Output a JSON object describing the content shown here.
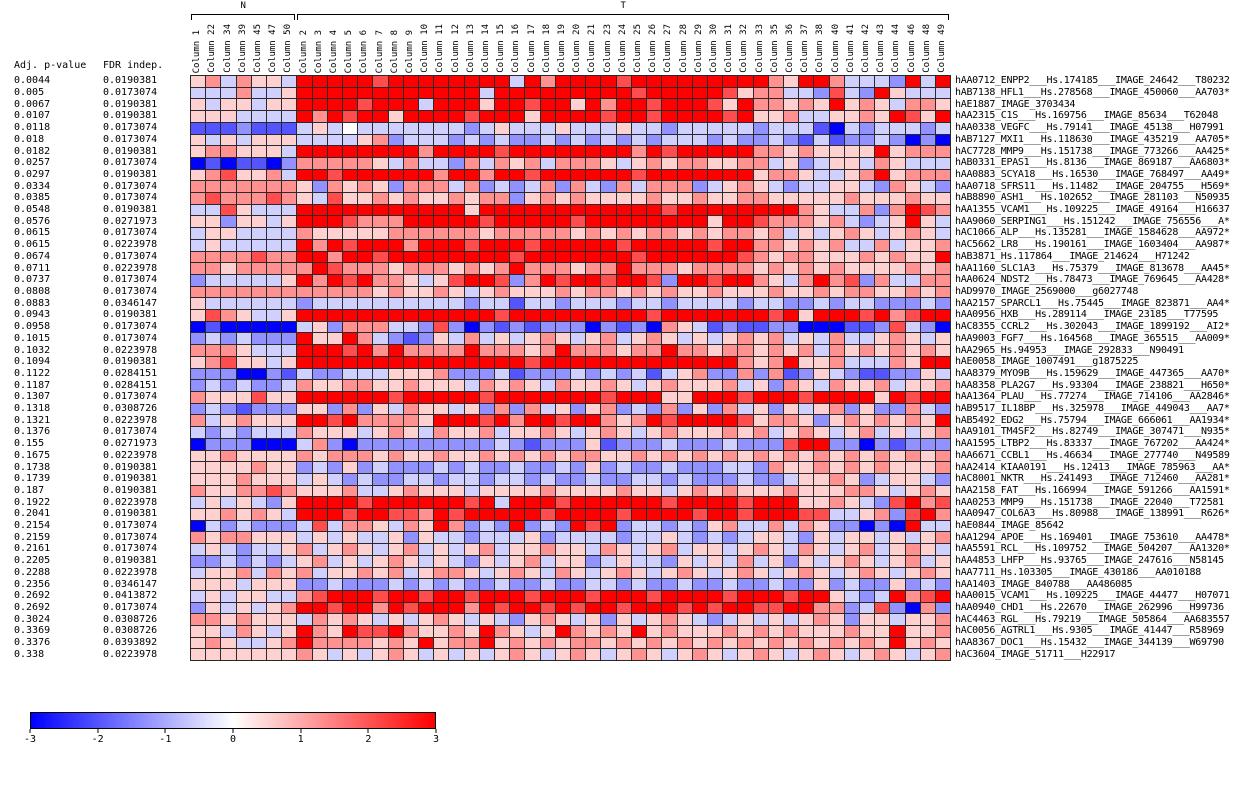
{
  "chart_data": {
    "type": "heatmap",
    "title": "",
    "stat_headers": {
      "adj_p": "Adj. p-value",
      "fdr": "FDR indep."
    },
    "value_range": [
      -3,
      3
    ],
    "colorbar_ticks": [
      "-3",
      "-2",
      "-1",
      "0",
      "1",
      "2",
      "3"
    ],
    "colormap": {
      "negative": "#0000ff",
      "zero": "#ffffff",
      "positive": "#ff0000"
    },
    "grid_line_color": "#2a2a2a",
    "bucket_values": {
      "0": -3,
      "1": -2,
      "2": -1.3,
      "3": -0.55,
      "4": 0,
      "5": 0.55,
      "6": 1.3,
      "7": 2.1,
      "8": 3
    },
    "column_groups": [
      {
        "label": "N",
        "n_columns": 7
      },
      {
        "label": "T",
        "n_columns": 43
      }
    ],
    "columns": [
      "Column 1",
      "Column 22",
      "Column 34",
      "Column 39",
      "Column 45",
      "Column 47",
      "Column 50",
      "Column 2",
      "Column 3",
      "Column 4",
      "Column 5",
      "Column 6",
      "Column 7",
      "Column 8",
      "Column 9",
      "Column 10",
      "Column 11",
      "Column 12",
      "Column 13",
      "Column 14",
      "Column 15",
      "Column 16",
      "Column 17",
      "Column 18",
      "Column 19",
      "Column 20",
      "Column 21",
      "Column 23",
      "Column 24",
      "Column 25",
      "Column 26",
      "Column 27",
      "Column 28",
      "Column 29",
      "Column 30",
      "Column 31",
      "Column 32",
      "Column 33",
      "Column 35",
      "Column 36",
      "Column 37",
      "Column 38",
      "Column 40",
      "Column 41",
      "Column 42",
      "Column 43",
      "Column 44",
      "Column 46",
      "Column 48",
      "Column 49"
    ],
    "rows": [
      {
        "adj_p": "0.0044",
        "fdr": "0.0190381",
        "label": "hAA0712_ENPP2___Hs.174185___IMAGE_24642___T80232",
        "cells": "5636553888887888888883868888788888 8888658863332838"
      },
      {
        "adj_p": "0.005",
        "fdr": "0.0173074",
        "label": "hAB7138_HFL1___Hs.278568___IMAGE_450060___AA703*",
        "cells": "33363358888888888883888888888788888756633273285333"
      },
      {
        "adj_p": "0.0067",
        "fdr": "0.0190381",
        "label": "hAE1887_IMAGE_3703434",
        "cells": "53553558888788838885887885868878887586656585653665"
      },
      {
        "adj_p": "0.0107",
        "fdr": "0.0190381",
        "label": "hAA2315_C1S___Hs.169756___IMAGE_85634___T62048",
        "cells": "55533338687885888878885888878878888785563355658758"
      },
      {
        "adj_p": "0.0118",
        "fdr": "0.0173074",
        "label": "hAA0338_VEGFC___Hs.79141___IMAGE_45138___H07991",
        "cells": "11121113534333333323533353335332333332333103233323"
      },
      {
        "adj_p": "0.018",
        "fdr": "0.0173074",
        "label": "hAB7127_MXI1___Hs.118630___IMAGE_435219___AA705*",
        "cells": "53535553333562333232322323232323332322321312232020"
      },
      {
        "adj_p": "0.0182",
        "fdr": "0.0190381",
        "label": "hAC7728_MMP9___Hs.151738___IMAGE_773266___AA425*",
        "cells": "56655538888888868888788888888687888886656555585666"
      },
      {
        "adj_p": "0.0257",
        "fdr": "0.0173074",
        "label": "hAB0331_EPAS1___Hs.8136___IMAGE_869187___AA6803*",
        "cells": "01011026666653633263656366653565665566352355365333"
      },
      {
        "adj_p": "0.0297",
        "fdr": "0.0190381",
        "label": "hAA0883_SCYA18___Hs.16530___IMAGE_768497___AA49*",
        "cells": "56755638878888886886887888888788888885665335685666"
      },
      {
        "adj_p": "0.0334",
        "fdr": "0.0173074",
        "label": "hAA0718_SFRS11___Hs.11482___IMAGE_204755___H569*",
        "cells": "66666665265652666362323626326366623565323355326532"
      },
      {
        "adj_p": "0.0385",
        "fdr": "0.0173074",
        "label": "hAB8890_ASH1___Hs.102652___IMAGE_281103___N50935",
        "cells": "67666765375565655656625656555565565566555556555655"
      },
      {
        "adj_p": "0.0548",
        "fdr": "0.0190381",
        "label": "hAA1355_VCAM1___Hs.109225___IMAGE_49164___H16637",
        "cells": "33753338888888888858888888888887888888886533626876"
      },
      {
        "adj_p": "0.0576",
        "fdr": "0.0271973",
        "label": "hAA9060_SERPING1___Hs.151242___IMAGE_756556___A*",
        "cells": "55255358887666888887888887888888885887666563235853"
      },
      {
        "adj_p": "0.0615",
        "fdr": "0.0173074",
        "label": "hAC1066_ALP___Hs.135281___IMAGE_1584628___AA972*",
        "cells": "35533336555556666665666665656566565665635356535653"
      },
      {
        "adj_p": "0.0615",
        "fdr": "0.0223978",
        "label": "hAC5662_LR8___Hs.190161___IMAGE_1603404___AA987*",
        "cells": "35333338687888688878887888887888887886656563363556"
      },
      {
        "adj_p": "0.0674",
        "fdr": "0.0173074",
        "label": "hAB3871_Hs.117864___IMAGE_214624___H71242",
        "cells": "66667668868878888888878888888788888876566555656558"
      },
      {
        "adj_p": "0.0711",
        "fdr": "0.0223978",
        "label": "hAA1160_SLC1A3___Hs.75379___IMAGE_813678___AA45*",
        "cells": "66566666876665666565686665668666566665656565555656"
      },
      {
        "adj_p": "0.0737",
        "fdr": "0.0173074",
        "label": "hAA0624_NDST2___Hs.78473___IMAGE_769645___AA428*",
        "cells": "23333358687866535788726878878872887886536867263366"
      },
      {
        "adj_p": "0.0808",
        "fdr": "0.0173074",
        "label": "hAD9970_IMAGE_2569000___g6027748",
        "cells": "66666666666656556535655565665656556555655656655656"
      },
      {
        "adj_p": "0.0883",
        "fdr": "0.0346147",
        "label": "hAA2157_SPARCL1___Hs.75445___IMAGE_823871___AA4*",
        "cells": "53333332333333333323313323332332333323322323322232"
      },
      {
        "adj_p": "0.0943",
        "fdr": "0.0190381",
        "label": "hAA0956_HXB___Hs.289114___IMAGE_23185___T77595",
        "cells": "57653358888888888888788888888878888888785888786788"
      },
      {
        "adj_p": "0.0958",
        "fdr": "0.0173074",
        "label": "hAC8355_CCRL2___Hs.302043___IMAGE_1899192___AI2*",
        "cells": "01000003526663327202121222021206531211220001127320"
      },
      {
        "adj_p": "0.1015",
        "fdr": "0.0173074",
        "label": "hAA9003_FGF7___Hs.164568___IMAGE_365515___AA009*",
        "cells": "23232228558632125363535653563565353565635363356535"
      },
      {
        "adj_p": "0.1032",
        "fdr": "0.0223978",
        "label": "hAA2965_Hs.94953___IMAGE_292833___N90491",
        "cells": "66653338887868666686665686665668665665656365656565"
      },
      {
        "adj_p": "0.1094",
        "fdr": "0.0190381",
        "label": "hAE0058_IMAGE_1007491___g1875225",
        "cells": "56755358888888888888887888888888888865685563336588"
      },
      {
        "adj_p": "0.1122",
        "fdr": "0.0284151",
        "label": "hAA8379_MYO9B___Hs.159629___IMAGE_447365___AA70*",
        "cells": "22200213223335556222312223232313562262612532112253"
      },
      {
        "adj_p": "0.1187",
        "fdr": "0.0284151",
        "label": "hAA8358_PLA2G7___Hs.93304___IMAGE_238821___H650*",
        "cells": "23232236556655655536565365565356555635265365563556"
      },
      {
        "adj_p": "0.1307",
        "fdr": "0.0173074",
        "label": "hAA1364_PLAU___Hs.77274___IMAGE_714106___AA2846*",
        "cells": "65557558888887888887888888878885588878887888858788"
      },
      {
        "adj_p": "0.1318",
        "fdr": "0.0308726",
        "label": "hAB9517_IL18BP___Hs.325978___IMAGE_449043___AA7*",
        "cells": "23212225526253655352626352562326252635253562522632"
      },
      {
        "adj_p": "0.1321",
        "fdr": "0.0223978",
        "label": "hAB5492_EDG2___Hs.75794___IMAGE_666061___AA1934*",
        "cells": "63565558878666658887868878865687888875665256565658"
      },
      {
        "adj_p": "0.1376",
        "fdr": "0.0173074",
        "label": "hAA9101_TM4SF2___Hs.82749___IMAGE_307471___N935*",
        "cells": "32323336555356536556355653565356555656356535635356"
      },
      {
        "adj_p": "0.155",
        "fdr": "0.0271973",
        "label": "hAA1595_LTBP2___Hs.83337___IMAGE_767202___AA424*",
        "cells": "02220003620222222222321222512223222322278822021222"
      },
      {
        "adj_p": "0.1675",
        "fdr": "0.0223978",
        "label": "hAA6671_CCBL1___Hs.46634___IMAGE_277740___N49589",
        "cells": "55655556566656556556565656655656565656565656565656"
      },
      {
        "adj_p": "0.1738",
        "fdr": "0.0190381",
        "label": "hAA2414_KIAA0191___Hs.12413___IMAGE_785963___AA*",
        "cells": "55556552325232223232232232523223222332655656565556"
      },
      {
        "adj_p": "0.1739",
        "fdr": "0.0190381",
        "label": "hAC8001_NKTR___Hs.241493___IMAGE_712460___AA281*",
        "cells": "55565553532322332332332322322332322232235565235532"
      },
      {
        "adj_p": "0.187",
        "fdr": "0.0190381",
        "label": "hAA2158_FAT___Hs.166994___IMAGE_591266___AA1591*",
        "cells": "65566765556335655535555655556553565655565556653565"
      },
      {
        "adj_p": "0.1922",
        "fdr": "0.0223978",
        "label": "hAA0253_MMP9___Hs.151738___IMAGE_22040___T72581",
        "cells": "35353258888788888878388878888887888878885565327867"
      },
      {
        "adj_p": "0.2041",
        "fdr": "0.0190381",
        "label": "hAA0947_COL6A3___Hs.80988___IMAGE_138991___R626*",
        "cells": "55656538887887768788888788887888878878887733562786"
      },
      {
        "adj_p": "0.2154",
        "fdr": "0.0173074",
        "label": "hAE0844_IMAGE_85642",
        "cells": "03232223736653658623282328782332325633636522020833"
      },
      {
        "adj_p": "0.2159",
        "fdr": "0.0173074",
        "label": "hAA1294_APOE___Hs.169401___IMAGE_753610___AA478*",
        "cells": "65665553535335253323335233332335323235532535535356"
      },
      {
        "adj_p": "0.2161",
        "fdr": "0.0173074",
        "label": "hAA5591_RCL___Hs.109752___IMAGE_504207___AA1320*",
        "cells": "35323356356535635356355655365356355356536535635653"
      },
      {
        "adj_p": "0.2205",
        "fdr": "0.0190381",
        "label": "hAA4853_LHFP___Hs.93765___IMAGE_247616___N58145",
        "cells": "22323235635356535325356355235332535363525356535635"
      },
      {
        "adj_p": "0.2288",
        "fdr": "0.0223978",
        "label": "hAA7711_Hs.103305___IMAGE_430186___AA010188",
        "cells": "35563656355656356653565365356535653565356535653565"
      },
      {
        "adj_p": "0.2356",
        "fdr": "0.0346147",
        "label": "hAA1403_IMAGE_840788___AA486085",
        "cells": "55535552232223232322322322332322322322322523225232"
      },
      {
        "adj_p": "0.2692",
        "fdr": "0.0413872",
        "label": "hAA0015_VCAM1___Hs.109225___IMAGE_44477___H07071",
        "cells": "35355336788878878878887888788878888788878853238678"
      },
      {
        "adj_p": "0.2692",
        "fdr": "0.0173074",
        "label": "hAA0940_CHD1___Hs.22670___IMAGE_262996___H99736",
        "cells": "25353568878868788868788787887888787887788662372062"
      },
      {
        "adj_p": "0.3024",
        "fdr": "0.0308726",
        "label": "hAC4463_RGL___Hs.79219___IMAGE_505864___AA683557",
        "cells": "66565553656535356535325653525356532353535652553556"
      },
      {
        "adj_p": "0.3369",
        "fdr": "0.0308726",
        "label": "hAC0056_AGTRL1___Hs.9305___IMAGE_41447___R58969",
        "cells": "55365358658778655658653586565856555656565556558556"
      },
      {
        "adj_p": "0.3376",
        "fdr": "0.0393892",
        "label": "hAA8367_DOC1___Hs.15432___IMAGE_344139___W69790",
        "cells": "56533568666656585668565656656565656565656565658565"
      },
      {
        "adj_p": "0.338",
        "fdr": "0.0223978",
        "label": "hAC3604_IMAGE_51711___H22917",
        "cells": "55555556535356535353565356535653565356535653565356"
      }
    ]
  }
}
